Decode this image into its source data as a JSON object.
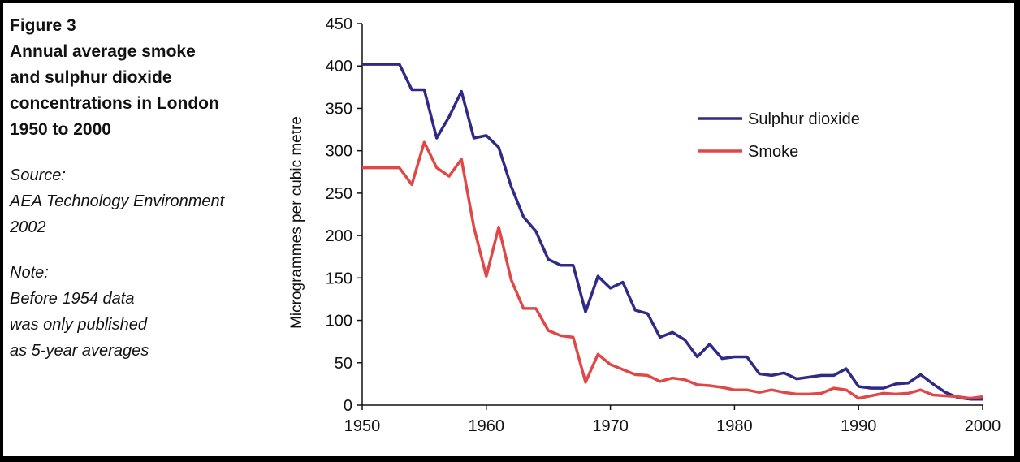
{
  "caption": {
    "figure_label": "Figure 3",
    "title": "Annual average smoke\nand sulphur dioxide\nconcentrations in London\n1950 to 2000",
    "source_label": "Source:",
    "source_text": "AEA Technology Environment\n2002",
    "note_label": "Note:",
    "note_text": "Before 1954 data\nwas only published\nas 5-year averages"
  },
  "chart_data": {
    "type": "line",
    "ylabel": "Microgrammes per cubic metre",
    "xlabel": "",
    "xlim": [
      1950,
      2000
    ],
    "ylim": [
      0,
      450
    ],
    "x_ticks": [
      1950,
      1960,
      1970,
      1980,
      1990,
      2000
    ],
    "y_ticks": [
      0,
      50,
      100,
      150,
      200,
      250,
      300,
      350,
      400,
      450
    ],
    "legend_position": "top-right",
    "grid": false,
    "x": [
      1950,
      1951,
      1952,
      1953,
      1954,
      1955,
      1956,
      1957,
      1958,
      1959,
      1960,
      1961,
      1962,
      1963,
      1964,
      1965,
      1966,
      1967,
      1968,
      1969,
      1970,
      1971,
      1972,
      1973,
      1974,
      1975,
      1976,
      1977,
      1978,
      1979,
      1980,
      1981,
      1982,
      1983,
      1984,
      1985,
      1986,
      1987,
      1988,
      1989,
      1990,
      1991,
      1992,
      1993,
      1994,
      1995,
      1996,
      1997,
      1998,
      1999,
      2000
    ],
    "series": [
      {
        "name": "Sulphur dioxide",
        "color": "#2e2a86",
        "values": [
          402,
          402,
          402,
          402,
          372,
          372,
          315,
          340,
          370,
          315,
          318,
          304,
          258,
          222,
          205,
          172,
          165,
          165,
          110,
          152,
          138,
          145,
          112,
          108,
          80,
          86,
          77,
          57,
          72,
          55,
          57,
          57,
          37,
          35,
          38,
          31,
          33,
          35,
          35,
          43,
          22,
          20,
          20,
          25,
          26,
          36,
          25,
          15,
          9,
          7,
          7
        ]
      },
      {
        "name": "Smoke",
        "color": "#e04848",
        "values": [
          280,
          280,
          280,
          280,
          260,
          310,
          280,
          270,
          290,
          210,
          152,
          210,
          148,
          114,
          114,
          88,
          82,
          80,
          27,
          60,
          48,
          42,
          36,
          35,
          28,
          32,
          30,
          24,
          23,
          21,
          18,
          18,
          15,
          18,
          15,
          13,
          13,
          14,
          20,
          18,
          8,
          11,
          14,
          13,
          14,
          18,
          12,
          11,
          10,
          8,
          10
        ]
      }
    ]
  }
}
